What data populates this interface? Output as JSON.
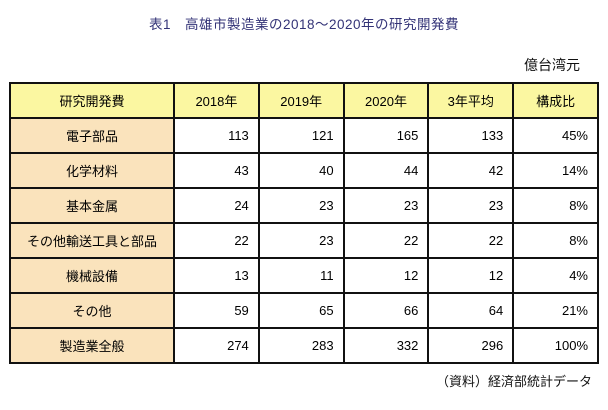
{
  "title": "表1　高雄市製造業の2018〜2020年の研究開発費",
  "unit_label": "億台湾元",
  "source_label": "（資料）経済部統計データ",
  "colors": {
    "header_bg": "#FBF7A1",
    "label_bg": "#FAE3BC",
    "title_color": "#333377",
    "border": "#111111"
  },
  "table": {
    "headers": [
      "研究開発費",
      "2018年",
      "2019年",
      "2020年",
      "3年平均",
      "構成比"
    ],
    "rows": [
      {
        "label": "電子部品",
        "values": [
          "113",
          "121",
          "165",
          "133",
          "45%"
        ]
      },
      {
        "label": "化学材料",
        "values": [
          "43",
          "40",
          "44",
          "42",
          "14%"
        ]
      },
      {
        "label": "基本金属",
        "values": [
          "24",
          "23",
          "23",
          "23",
          "8%"
        ]
      },
      {
        "label": "その他輸送工具と部品",
        "values": [
          "22",
          "23",
          "22",
          "22",
          "8%"
        ]
      },
      {
        "label": "機械設備",
        "values": [
          "13",
          "11",
          "12",
          "12",
          "4%"
        ]
      },
      {
        "label": "その他",
        "values": [
          "59",
          "65",
          "66",
          "64",
          "21%"
        ]
      },
      {
        "label": "製造業全般",
        "values": [
          "274",
          "283",
          "332",
          "296",
          "100%"
        ]
      }
    ]
  }
}
